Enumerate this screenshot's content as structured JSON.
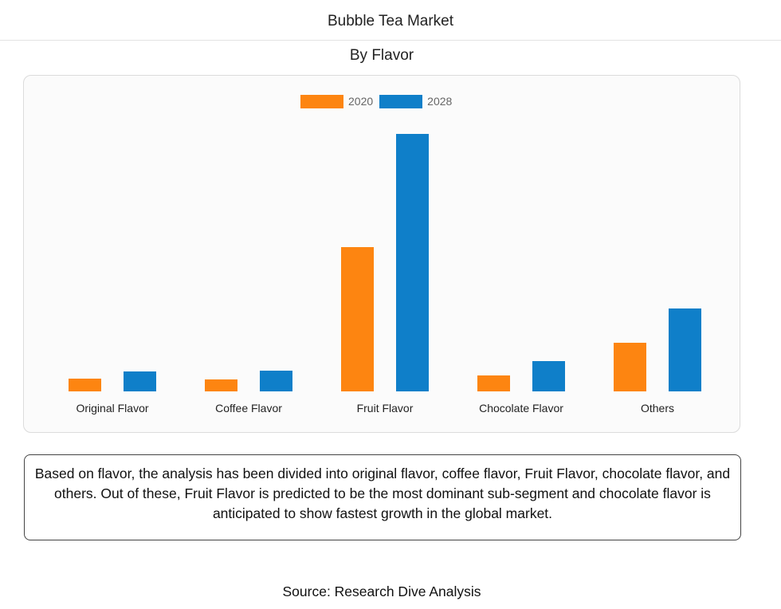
{
  "header": {
    "title": "Bubble Tea Market",
    "subtitle": "By Flavor"
  },
  "legend": [
    {
      "label": "2020",
      "color": "#fd8511"
    },
    {
      "label": "2028",
      "color": "#0f7fc9"
    }
  ],
  "note": "Based on flavor, the analysis has been divided into original flavor, coffee flavor, Fruit Flavor, chocolate flavor, and others. Out of these, Fruit Flavor is predicted to be the most dominant sub-segment and chocolate flavor is anticipated to show fastest growth in the global market.",
  "source": "Source: Research Dive Analysis",
  "chart_data": {
    "type": "bar",
    "title": "Bubble Tea Market",
    "subtitle": "By Flavor",
    "xlabel": "",
    "ylabel": "",
    "y_axis_shown": false,
    "grid": false,
    "legend_position": "top",
    "value_units": "relative bar height (px, no axis scale shown)",
    "categories": [
      "Original Flavor",
      "Coffee Flavor",
      "Fruit Flavor",
      "Chocolate Flavor",
      "Others"
    ],
    "series": [
      {
        "name": "2020",
        "color": "#fd8511",
        "values": [
          16,
          15,
          181,
          20,
          61
        ]
      },
      {
        "name": "2028",
        "color": "#0f7fc9",
        "values": [
          25,
          26,
          323,
          38,
          104
        ]
      }
    ],
    "ylim": [
      0,
      330
    ]
  }
}
